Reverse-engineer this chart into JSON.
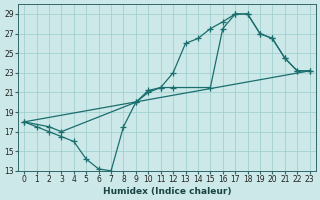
{
  "xlabel": "Humidex (Indice chaleur)",
  "ylabel": "",
  "background_color": "#cce8e8",
  "grid_color": "#99cccc",
  "line_color": "#1a6e6e",
  "xlim": [
    -0.5,
    23.5
  ],
  "ylim": [
    13,
    30
  ],
  "xticks": [
    0,
    1,
    2,
    3,
    4,
    5,
    6,
    7,
    8,
    9,
    10,
    11,
    12,
    13,
    14,
    15,
    16,
    17,
    18,
    19,
    20,
    21,
    22,
    23
  ],
  "yticks": [
    13,
    15,
    17,
    19,
    21,
    23,
    25,
    27,
    29
  ],
  "line1_x": [
    0,
    1,
    2,
    3,
    4,
    5,
    6,
    7,
    8,
    9,
    10,
    11,
    12,
    13,
    14,
    15,
    16,
    17,
    18,
    19,
    20,
    21,
    22,
    23
  ],
  "line1_y": [
    18.0,
    17.5,
    17.0,
    16.5,
    16.0,
    14.2,
    13.2,
    13.0,
    17.5,
    20.0,
    21.2,
    21.5,
    23.0,
    26.0,
    26.5,
    27.5,
    28.2,
    29.0,
    29.0,
    27.0,
    26.5,
    24.5,
    23.2,
    23.2
  ],
  "line2_x": [
    0,
    2,
    3,
    9,
    10,
    11,
    12,
    15,
    16,
    17,
    18,
    19,
    20,
    21,
    22,
    23
  ],
  "line2_y": [
    18.0,
    17.5,
    17.0,
    20.0,
    21.0,
    21.5,
    21.5,
    21.5,
    27.5,
    29.0,
    29.0,
    27.0,
    26.5,
    24.5,
    23.2,
    23.2
  ],
  "line3_x": [
    0,
    23
  ],
  "line3_y": [
    18.0,
    23.2
  ],
  "linewidth": 0.9,
  "marker": "+",
  "markersize": 4.0
}
